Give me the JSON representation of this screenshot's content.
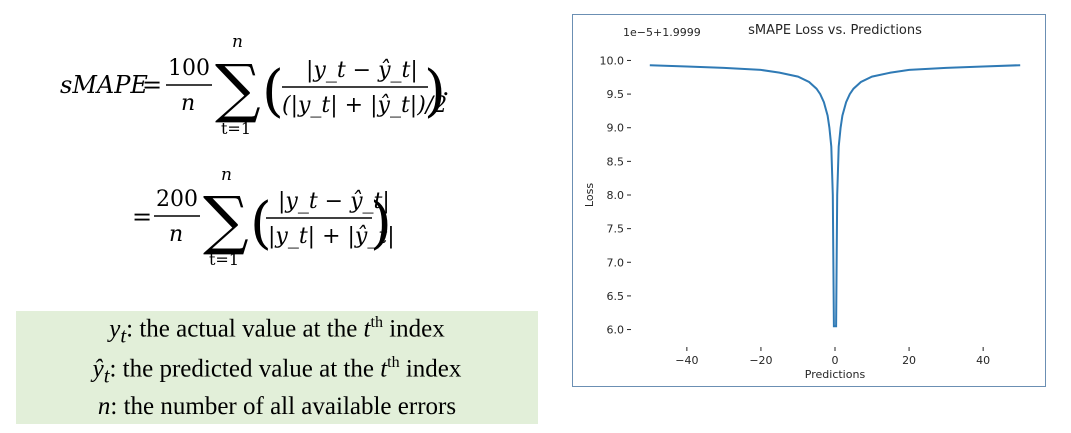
{
  "formula": {
    "lhs": "sMAPE",
    "eq": "=",
    "coef1": "100",
    "coef2": "200",
    "n": "n",
    "sum_top": "n",
    "sum_bottom": "t=1",
    "num": "|y_t − ŷ_t|",
    "den1": "(|y_t| + |ŷ_t|)/2",
    "den2": "|y_t| + |ŷ_t|",
    "period": "."
  },
  "legend": {
    "line1_sym": "y",
    "line1_sub": "t",
    "line1_text": ": the actual value at the ",
    "line1_t": "t",
    "line1_sup": "th",
    "line1_end": " index",
    "line2_sym": "ŷ",
    "line2_sub": "t",
    "line2_text": ": the predicted value at the ",
    "line2_t": "t",
    "line2_sup": "th",
    "line2_end": " index",
    "line3_sym": "n",
    "line3_text": ": the number of all available errors",
    "background": "#e2efd9"
  },
  "chart_data": {
    "type": "line",
    "title": "sMAPE Loss vs. Predictions",
    "xlabel": "Predictions",
    "ylabel": "Loss",
    "offset_text": "1e−5+1.9999",
    "xlim": [
      -54,
      54
    ],
    "ylim": [
      5.8,
      10.2
    ],
    "xticks": [
      -40,
      -20,
      0,
      20,
      40
    ],
    "xtick_labels": [
      "−40",
      "−20",
      "0",
      "20",
      "40"
    ],
    "yticks": [
      6.0,
      6.5,
      7.0,
      7.5,
      8.0,
      8.5,
      9.0,
      9.5,
      10.0
    ],
    "ytick_labels": [
      "6.0",
      "6.5",
      "7.0",
      "7.5",
      "8.0",
      "8.5",
      "9.0",
      "9.5",
      "10.0"
    ],
    "line_color": "#2f7ab5",
    "series": [
      {
        "x": [
          -50,
          -40,
          -30,
          -20,
          -15,
          -10,
          -7,
          -5,
          -4,
          -3,
          -2,
          -1.5,
          -1,
          -0.6,
          -0.3,
          0,
          0.3,
          0.6,
          1,
          1.5,
          2,
          3,
          4,
          5,
          7,
          10,
          15,
          20,
          30,
          40,
          50
        ],
        "values": [
          9.93,
          9.91,
          9.89,
          9.86,
          9.82,
          9.76,
          9.68,
          9.58,
          9.5,
          9.38,
          9.18,
          9.0,
          8.72,
          8.0,
          6.05,
          6.05,
          6.05,
          8.0,
          8.72,
          9.0,
          9.18,
          9.38,
          9.5,
          9.58,
          9.68,
          9.76,
          9.82,
          9.86,
          9.89,
          9.91,
          9.93
        ]
      }
    ]
  }
}
